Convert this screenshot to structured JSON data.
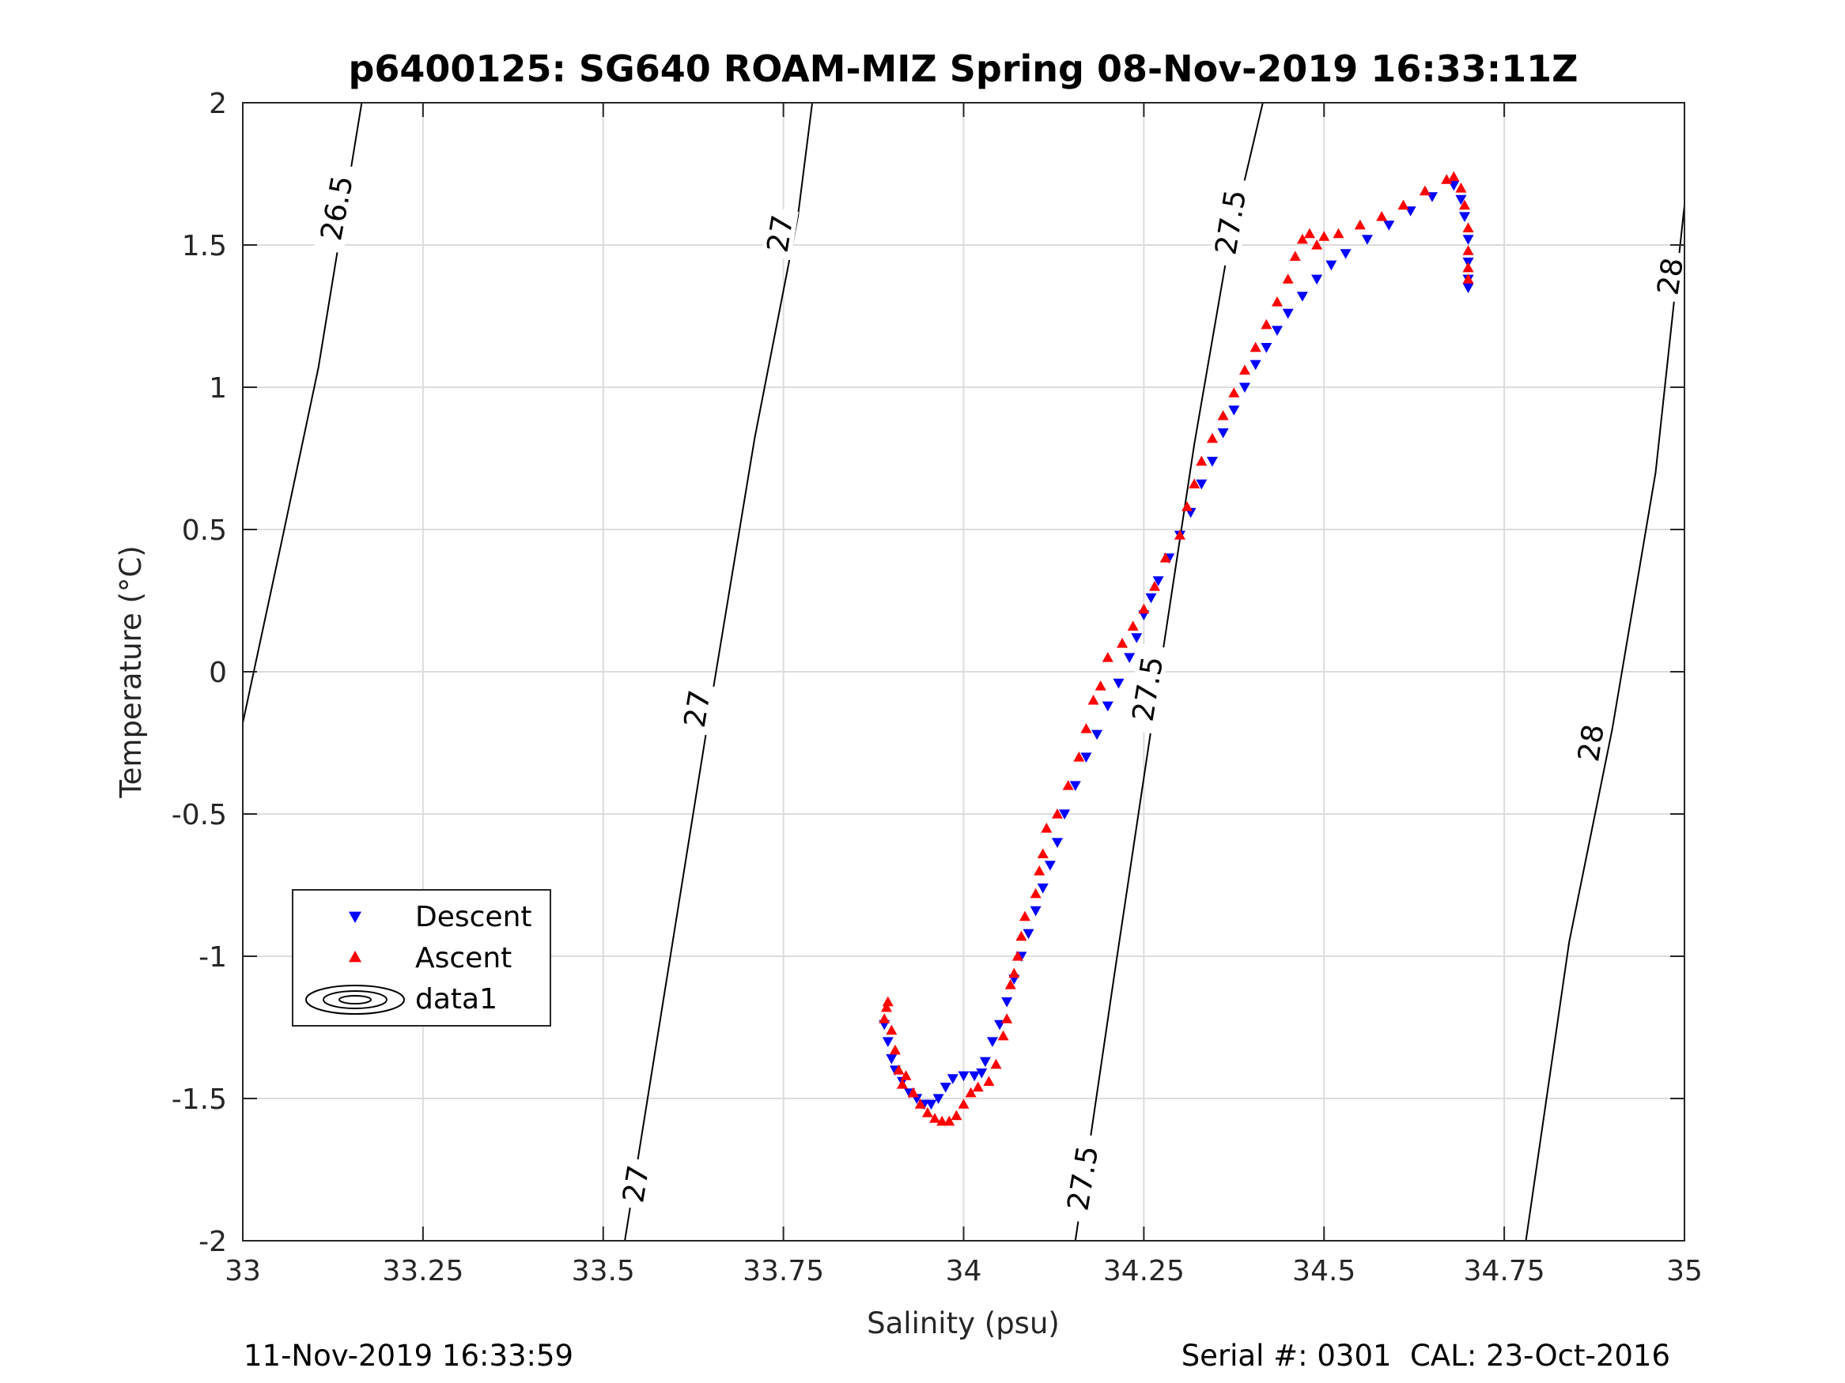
{
  "chart_data": {
    "type": "scatter",
    "title": "p6400125: SG640 ROAM-MIZ Spring 08-Nov-2019 16:33:11Z",
    "xlabel": "Salinity (psu)",
    "ylabel": "Temperature (°C)",
    "xlim": [
      33,
      35
    ],
    "ylim": [
      -2,
      2
    ],
    "xticks": [
      33,
      33.25,
      33.5,
      33.75,
      34,
      34.25,
      34.5,
      34.75,
      35
    ],
    "xtick_labels": [
      "33",
      "33.25",
      "33.5",
      "33.75",
      "34",
      "34.25",
      "34.5",
      "34.75",
      "35"
    ],
    "yticks": [
      -2,
      -1.5,
      -1,
      -0.5,
      0,
      0.5,
      1,
      1.5,
      2
    ],
    "ytick_labels": [
      "-2",
      "-1.5",
      "-1",
      "-0.5",
      "0",
      "0.5",
      "1",
      "1.5",
      "2"
    ],
    "grid": true,
    "legend_position": "lower-left",
    "series": [
      {
        "name": "Descent",
        "marker": "triangle-down",
        "color": "#0000ff",
        "points": [
          [
            33.89,
            -1.24
          ],
          [
            33.895,
            -1.3
          ],
          [
            33.9,
            -1.36
          ],
          [
            33.905,
            -1.4
          ],
          [
            33.915,
            -1.44
          ],
          [
            33.925,
            -1.48
          ],
          [
            33.935,
            -1.5
          ],
          [
            33.945,
            -1.52
          ],
          [
            33.955,
            -1.52
          ],
          [
            33.965,
            -1.5
          ],
          [
            33.975,
            -1.46
          ],
          [
            33.985,
            -1.43
          ],
          [
            34.0,
            -1.42
          ],
          [
            34.015,
            -1.42
          ],
          [
            34.025,
            -1.41
          ],
          [
            34.03,
            -1.37
          ],
          [
            34.04,
            -1.3
          ],
          [
            34.05,
            -1.24
          ],
          [
            34.06,
            -1.16
          ],
          [
            34.07,
            -1.08
          ],
          [
            34.08,
            -1.0
          ],
          [
            34.09,
            -0.92
          ],
          [
            34.1,
            -0.84
          ],
          [
            34.11,
            -0.76
          ],
          [
            34.12,
            -0.68
          ],
          [
            34.13,
            -0.6
          ],
          [
            34.14,
            -0.5
          ],
          [
            34.155,
            -0.4
          ],
          [
            34.17,
            -0.3
          ],
          [
            34.185,
            -0.22
          ],
          [
            34.2,
            -0.12
          ],
          [
            34.215,
            -0.04
          ],
          [
            34.23,
            0.05
          ],
          [
            34.24,
            0.12
          ],
          [
            34.25,
            0.2
          ],
          [
            34.26,
            0.26
          ],
          [
            34.27,
            0.32
          ],
          [
            34.285,
            0.4
          ],
          [
            34.3,
            0.48
          ],
          [
            34.315,
            0.56
          ],
          [
            34.33,
            0.66
          ],
          [
            34.345,
            0.74
          ],
          [
            34.36,
            0.84
          ],
          [
            34.375,
            0.92
          ],
          [
            34.39,
            1.0
          ],
          [
            34.405,
            1.08
          ],
          [
            34.42,
            1.14
          ],
          [
            34.435,
            1.2
          ],
          [
            34.45,
            1.26
          ],
          [
            34.47,
            1.32
          ],
          [
            34.49,
            1.38
          ],
          [
            34.51,
            1.43
          ],
          [
            34.53,
            1.47
          ],
          [
            34.56,
            1.52
          ],
          [
            34.59,
            1.57
          ],
          [
            34.62,
            1.62
          ],
          [
            34.65,
            1.67
          ],
          [
            34.68,
            1.71
          ],
          [
            34.69,
            1.66
          ],
          [
            34.695,
            1.6
          ],
          [
            34.7,
            1.52
          ],
          [
            34.7,
            1.44
          ],
          [
            34.7,
            1.38
          ],
          [
            34.7,
            1.35
          ]
        ]
      },
      {
        "name": "Ascent",
        "marker": "triangle-up",
        "color": "#ff0000",
        "points": [
          [
            33.89,
            -1.22
          ],
          [
            33.893,
            -1.18
          ],
          [
            33.895,
            -1.16
          ],
          [
            33.9,
            -1.26
          ],
          [
            33.905,
            -1.33
          ],
          [
            33.91,
            -1.4
          ],
          [
            33.915,
            -1.45
          ],
          [
            33.92,
            -1.42
          ],
          [
            33.93,
            -1.48
          ],
          [
            33.94,
            -1.52
          ],
          [
            33.95,
            -1.55
          ],
          [
            33.96,
            -1.57
          ],
          [
            33.97,
            -1.58
          ],
          [
            33.98,
            -1.58
          ],
          [
            33.99,
            -1.56
          ],
          [
            34.0,
            -1.52
          ],
          [
            34.01,
            -1.48
          ],
          [
            34.02,
            -1.46
          ],
          [
            34.035,
            -1.44
          ],
          [
            34.045,
            -1.38
          ],
          [
            34.055,
            -1.28
          ],
          [
            34.06,
            -1.22
          ],
          [
            34.065,
            -1.1
          ],
          [
            34.07,
            -1.06
          ],
          [
            34.075,
            -1.0
          ],
          [
            34.08,
            -0.93
          ],
          [
            34.085,
            -0.86
          ],
          [
            34.1,
            -0.78
          ],
          [
            34.105,
            -0.7
          ],
          [
            34.11,
            -0.64
          ],
          [
            34.115,
            -0.55
          ],
          [
            34.13,
            -0.5
          ],
          [
            34.145,
            -0.4
          ],
          [
            34.16,
            -0.3
          ],
          [
            34.17,
            -0.2
          ],
          [
            34.18,
            -0.1
          ],
          [
            34.19,
            -0.05
          ],
          [
            34.2,
            0.05
          ],
          [
            34.22,
            0.1
          ],
          [
            34.235,
            0.16
          ],
          [
            34.25,
            0.22
          ],
          [
            34.265,
            0.3
          ],
          [
            34.28,
            0.4
          ],
          [
            34.3,
            0.48
          ],
          [
            34.31,
            0.58
          ],
          [
            34.32,
            0.66
          ],
          [
            34.33,
            0.74
          ],
          [
            34.345,
            0.82
          ],
          [
            34.36,
            0.9
          ],
          [
            34.375,
            0.98
          ],
          [
            34.39,
            1.06
          ],
          [
            34.405,
            1.14
          ],
          [
            34.42,
            1.22
          ],
          [
            34.435,
            1.3
          ],
          [
            34.45,
            1.38
          ],
          [
            34.46,
            1.46
          ],
          [
            34.47,
            1.52
          ],
          [
            34.48,
            1.54
          ],
          [
            34.49,
            1.5
          ],
          [
            34.5,
            1.53
          ],
          [
            34.52,
            1.54
          ],
          [
            34.55,
            1.57
          ],
          [
            34.58,
            1.6
          ],
          [
            34.61,
            1.64
          ],
          [
            34.64,
            1.69
          ],
          [
            34.67,
            1.73
          ],
          [
            34.68,
            1.74
          ],
          [
            34.69,
            1.7
          ],
          [
            34.695,
            1.64
          ],
          [
            34.7,
            1.56
          ],
          [
            34.7,
            1.48
          ],
          [
            34.7,
            1.42
          ],
          [
            34.7,
            1.38
          ]
        ]
      }
    ],
    "contours": {
      "series_name": "data1",
      "color": "#000000",
      "lines": [
        {
          "level": "26.5",
          "points": [
            [
              33.0,
              -0.18
            ],
            [
              33.055,
              0.47
            ],
            [
              33.105,
              1.07
            ],
            [
              33.165,
              2.0
            ]
          ],
          "labels": [
            {
              "text": "26.5",
              "at": [
                33.13,
                1.63
              ]
            }
          ]
        },
        {
          "level": "27",
          "points": [
            [
              33.53,
              -2.0
            ],
            [
              33.59,
              -1.05
            ],
            [
              33.65,
              -0.1
            ],
            [
              33.71,
              0.82
            ],
            [
              33.77,
              1.6
            ],
            [
              33.79,
              2.0
            ]
          ],
          "labels": [
            {
              "text": "27",
              "at": [
                33.545,
                -1.8
              ]
            },
            {
              "text": "27",
              "at": [
                33.63,
                -0.13
              ]
            },
            {
              "text": "27",
              "at": [
                33.745,
                1.54
              ]
            }
          ]
        },
        {
          "level": "27.5",
          "points": [
            [
              34.155,
              -2.0
            ],
            [
              34.21,
              -1.05
            ],
            [
              34.265,
              -0.12
            ],
            [
              34.32,
              0.8
            ],
            [
              34.365,
              1.46
            ],
            [
              34.415,
              2.0
            ]
          ],
          "labels": [
            {
              "text": "27.5",
              "at": [
                34.165,
                -1.78
              ]
            },
            {
              "text": "27.5",
              "at": [
                34.255,
                -0.06
              ]
            },
            {
              "text": "27.5",
              "at": [
                34.37,
                1.58
              ]
            }
          ]
        },
        {
          "level": "28",
          "points": [
            [
              34.78,
              -2.0
            ],
            [
              34.84,
              -0.95
            ],
            [
              34.9,
              -0.2
            ],
            [
              34.96,
              0.7
            ],
            [
              35.0,
              1.64
            ]
          ],
          "labels": [
            {
              "text": "28",
              "at": [
                34.87,
                -0.25
              ]
            },
            {
              "text": "28",
              "at": [
                34.98,
                1.39
              ]
            }
          ]
        }
      ]
    },
    "legend": {
      "entries": [
        {
          "label": "Descent",
          "marker": "triangle-down",
          "color": "#0000ff"
        },
        {
          "label": "Ascent",
          "marker": "triangle-up",
          "color": "#ff0000"
        },
        {
          "label": "data1",
          "marker": "contour-ellipses",
          "color": "#000000"
        }
      ]
    }
  },
  "footer": {
    "left": "11-Nov-2019 16:33:59",
    "right": "Serial #: 0301  CAL: 23-Oct-2016"
  }
}
